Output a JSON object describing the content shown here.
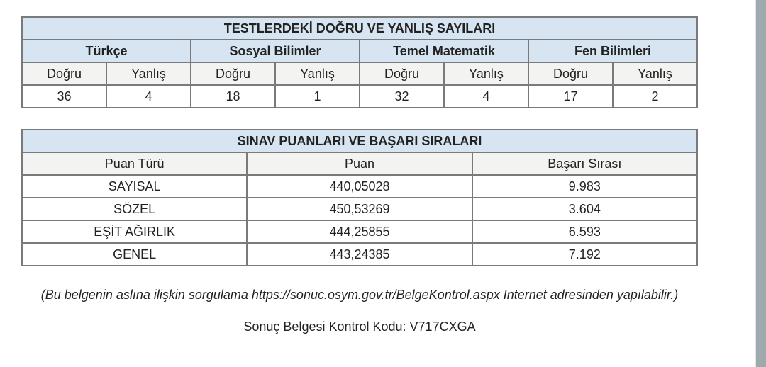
{
  "tests": {
    "title": "TESTLERDEKİ DOĞRU VE YANLIŞ SAYILARI",
    "subjects": [
      {
        "name": "Türkçe",
        "correct_label": "Doğru",
        "wrong_label": "Yanlış",
        "correct": "36",
        "wrong": "4"
      },
      {
        "name": "Sosyal Bilimler",
        "correct_label": "Doğru",
        "wrong_label": "Yanlış",
        "correct": "18",
        "wrong": "1"
      },
      {
        "name": "Temel Matematik",
        "correct_label": "Doğru",
        "wrong_label": "Yanlış",
        "correct": "32",
        "wrong": "4"
      },
      {
        "name": "Fen Bilimleri",
        "correct_label": "Doğru",
        "wrong_label": "Yanlış",
        "correct": "17",
        "wrong": "2"
      }
    ]
  },
  "scores": {
    "title": "SINAV PUANLARI VE BAŞARI SIRALARI",
    "headers": [
      "Puan Türü",
      "Puan",
      "Başarı Sırası"
    ],
    "rows": [
      [
        "SAYISAL",
        "440,05028",
        "9.983"
      ],
      [
        "SÖZEL",
        "450,53269",
        "3.604"
      ],
      [
        "EŞİT AĞIRLIK",
        "444,25855",
        "6.593"
      ],
      [
        "GENEL",
        "443,24385",
        "7.192"
      ]
    ]
  },
  "footer": {
    "note": "(Bu belgenin aslına ilişkin sorgulama https://sonuc.osym.gov.tr/BelgeKontrol.aspx Internet adresinden yapılabilir.)",
    "code": "Sonuç Belgesi Kontrol Kodu: V717CXGA"
  }
}
